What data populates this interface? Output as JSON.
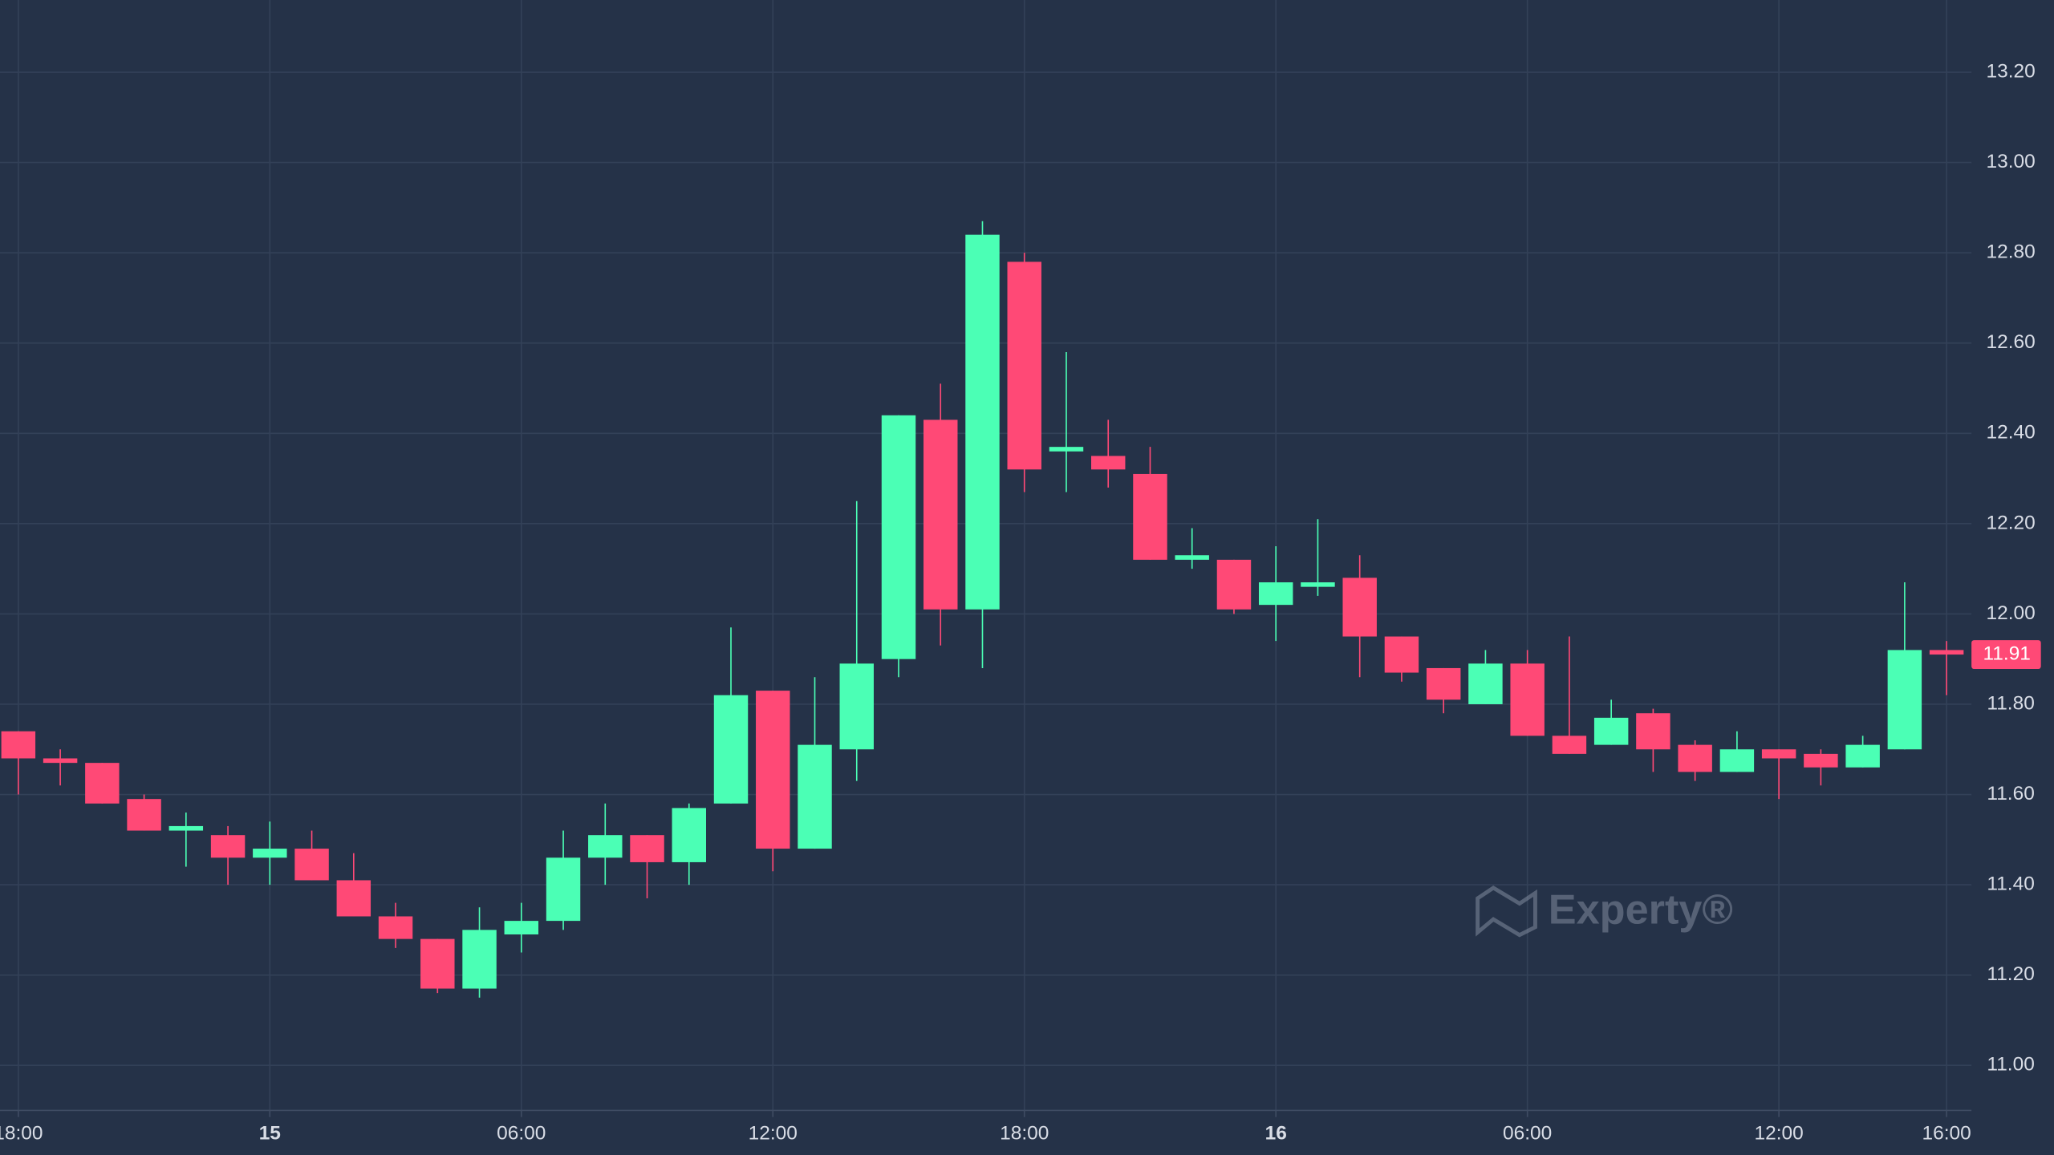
{
  "chart_data": {
    "type": "candlestick",
    "categories": [
      "18:00",
      null,
      null,
      null,
      null,
      null,
      "15",
      null,
      null,
      null,
      null,
      null,
      "06:00",
      null,
      null,
      null,
      null,
      null,
      "12:00",
      null,
      null,
      null,
      null,
      null,
      "18:00",
      null,
      null,
      null,
      null,
      null,
      "16",
      null,
      null,
      null,
      null,
      null,
      "06:00",
      null,
      null,
      null,
      null,
      null,
      "12:00",
      null,
      null,
      null,
      "16:00"
    ],
    "open": [
      11.74,
      11.68,
      11.67,
      11.59,
      11.52,
      11.51,
      11.46,
      11.48,
      11.41,
      11.33,
      11.28,
      11.17,
      11.29,
      11.32,
      11.46,
      11.51,
      11.45,
      11.58,
      11.83,
      11.48,
      11.7,
      11.9,
      12.43,
      12.01,
      12.78,
      12.36,
      12.35,
      12.31,
      12.12,
      12.12,
      12.02,
      12.06,
      12.08,
      11.95,
      11.88,
      11.8,
      11.89,
      11.73,
      11.71,
      11.78,
      11.71,
      11.65,
      11.7,
      11.69,
      11.66,
      11.7,
      11.92
    ],
    "high": [
      11.74,
      11.7,
      11.67,
      11.6,
      11.56,
      11.53,
      11.54,
      11.52,
      11.47,
      11.36,
      11.28,
      11.35,
      11.36,
      11.52,
      11.58,
      11.51,
      11.58,
      11.97,
      11.83,
      11.86,
      12.25,
      12.44,
      12.51,
      12.87,
      12.8,
      12.58,
      12.43,
      12.37,
      12.19,
      12.12,
      12.15,
      12.21,
      12.13,
      11.95,
      11.88,
      11.92,
      11.92,
      11.95,
      11.81,
      11.79,
      11.72,
      11.74,
      11.7,
      11.7,
      11.73,
      12.07,
      11.94
    ],
    "low": [
      11.6,
      11.62,
      11.58,
      11.52,
      11.44,
      11.4,
      11.4,
      11.41,
      11.33,
      11.26,
      11.16,
      11.15,
      11.25,
      11.3,
      11.4,
      11.37,
      11.4,
      11.58,
      11.43,
      11.48,
      11.63,
      11.86,
      11.93,
      11.88,
      12.27,
      12.27,
      12.28,
      12.12,
      12.1,
      12.0,
      11.94,
      12.04,
      11.86,
      11.85,
      11.78,
      11.8,
      11.73,
      11.69,
      11.71,
      11.65,
      11.63,
      11.65,
      11.59,
      11.62,
      11.66,
      11.7,
      11.82
    ],
    "close": [
      11.68,
      11.67,
      11.58,
      11.52,
      11.53,
      11.46,
      11.48,
      11.41,
      11.33,
      11.28,
      11.17,
      11.3,
      11.32,
      11.46,
      11.51,
      11.45,
      11.57,
      11.82,
      11.48,
      11.71,
      11.89,
      12.44,
      12.01,
      12.84,
      12.32,
      12.37,
      12.32,
      12.12,
      12.13,
      12.01,
      12.07,
      12.07,
      11.95,
      11.87,
      11.81,
      11.89,
      11.73,
      11.69,
      11.77,
      11.7,
      11.65,
      11.7,
      11.68,
      11.66,
      11.71,
      11.92,
      11.91
    ],
    "up_color": "#4bffb5",
    "down_color": "#ff4976",
    "ylim": [
      10.9,
      13.36
    ],
    "yticks": [
      {
        "value": 11,
        "label": "11.00"
      },
      {
        "value": 11.2,
        "label": "11.20"
      },
      {
        "value": 11.4,
        "label": "11.40"
      },
      {
        "value": 11.6,
        "label": "11.60"
      },
      {
        "value": 11.8,
        "label": "11.80"
      },
      {
        "value": 12,
        "label": "12.00"
      },
      {
        "value": 12.2,
        "label": "12.20"
      },
      {
        "value": 12.4,
        "label": "12.40"
      },
      {
        "value": 12.6,
        "label": "12.60"
      },
      {
        "value": 12.8,
        "label": "12.80"
      },
      {
        "value": 13,
        "label": "13.00"
      },
      {
        "value": 13.2,
        "label": "13.20"
      }
    ],
    "grid": true,
    "watermark": "Experty®"
  }
}
